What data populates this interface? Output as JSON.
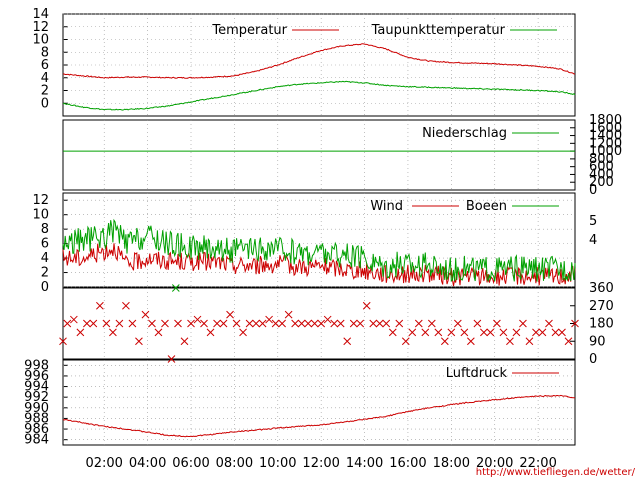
{
  "footer_url": "http://www.tiefliegen.de/wetter/",
  "colors": {
    "red": "#cc0000",
    "green": "#00a000",
    "marker": "#cc0000"
  },
  "x_axis": {
    "ticks": [
      "02:00",
      "04:00",
      "06:00",
      "08:00",
      "10:00",
      "12:00",
      "14:00",
      "16:00",
      "18:00",
      "20:00",
      "22:00"
    ],
    "tick_hours": [
      2,
      4,
      6,
      8,
      10,
      12,
      14,
      16,
      18,
      20,
      22
    ],
    "range_hours": [
      0.1,
      23.7
    ]
  },
  "chart_data": [
    {
      "type": "line",
      "ylim": [
        -2,
        14
      ],
      "yticks": [
        0,
        2,
        4,
        6,
        8,
        10,
        12,
        14
      ],
      "grid": true,
      "legend_position": "top-right",
      "series": [
        {
          "name": "Temperatur",
          "color": "#cc0000",
          "x": [
            0.1,
            1,
            2,
            3,
            4,
            5,
            6,
            7,
            8,
            9,
            10,
            11,
            12,
            13,
            14,
            15,
            16,
            17,
            18,
            19,
            20,
            21,
            22,
            23,
            23.7
          ],
          "values": [
            4.6,
            4.3,
            4.0,
            4.1,
            4.1,
            4.0,
            4.0,
            4.1,
            4.3,
            5.0,
            6.0,
            7.2,
            8.3,
            9.0,
            9.3,
            8.5,
            7.2,
            6.6,
            6.4,
            6.3,
            6.2,
            6.0,
            5.8,
            5.4,
            4.6
          ]
        },
        {
          "name": "Taupunkttemperatur",
          "color": "#00a000",
          "x": [
            0.1,
            1,
            2,
            3,
            4,
            5,
            6,
            7,
            8,
            9,
            10,
            11,
            12,
            13,
            14,
            15,
            16,
            17,
            18,
            19,
            20,
            21,
            22,
            23,
            23.7
          ],
          "values": [
            0.0,
            -0.6,
            -1.0,
            -1.0,
            -0.8,
            -0.4,
            0.2,
            0.8,
            1.4,
            2.0,
            2.6,
            3.0,
            3.2,
            3.4,
            3.2,
            2.8,
            2.6,
            2.5,
            2.4,
            2.3,
            2.2,
            2.1,
            2.0,
            1.8,
            1.4
          ]
        }
      ]
    },
    {
      "type": "line",
      "ylim": [
        0,
        1800
      ],
      "yticks": [
        0,
        200,
        400,
        600,
        800,
        1000,
        1200,
        1400,
        1600,
        1800
      ],
      "grid": false,
      "legend_position": "top-right",
      "series": [
        {
          "name": "Niederschlag",
          "color": "#00a000",
          "x": [
            0.1,
            23.7
          ],
          "values": [
            1000,
            1000
          ]
        }
      ]
    },
    {
      "type": "line",
      "ylim": [
        0,
        13
      ],
      "yticks": [
        0,
        2,
        4,
        6,
        8,
        10,
        12
      ],
      "secondary_ticks": [
        "4",
        "5"
      ],
      "grid": true,
      "legend_position": "top-right",
      "series": [
        {
          "name": "Wind",
          "color": "#cc0000",
          "x": [
            0.1,
            1,
            2,
            2.5,
            3,
            4,
            5,
            6,
            7,
            8,
            9,
            10,
            11,
            12,
            13,
            14,
            15,
            16,
            17,
            18,
            19,
            20,
            21,
            22,
            23,
            23.7
          ],
          "values": [
            4.0,
            4.0,
            5.0,
            5.5,
            3.0,
            4.0,
            3.5,
            3.5,
            3.5,
            3.0,
            3.0,
            3.2,
            2.8,
            2.8,
            2.5,
            2.2,
            1.8,
            1.8,
            1.8,
            1.4,
            1.5,
            1.4,
            1.6,
            1.5,
            1.5,
            1.8
          ]
        },
        {
          "name": "Boeen",
          "color": "#00a000",
          "x": [
            0.1,
            1,
            2,
            2.5,
            3,
            4,
            5,
            6,
            7,
            8,
            9,
            10,
            11,
            12,
            13,
            14,
            15,
            16,
            17,
            18,
            19,
            20,
            21,
            22,
            23,
            23.7
          ],
          "values": [
            6.0,
            6.5,
            7.0,
            8.0,
            6.0,
            7.0,
            6.0,
            5.5,
            5.5,
            5.0,
            5.0,
            5.2,
            4.8,
            4.8,
            4.3,
            3.8,
            3.0,
            3.2,
            3.0,
            2.6,
            2.6,
            2.4,
            2.5,
            2.4,
            2.5,
            2.6
          ]
        }
      ]
    },
    {
      "type": "scatter",
      "ylim": [
        0,
        360
      ],
      "yticks": [
        0,
        90,
        180,
        270,
        360
      ],
      "grid": false,
      "series": [
        {
          "color": "#cc0000",
          "x": [
            0.1,
            0.3,
            0.6,
            0.9,
            1.2,
            1.5,
            1.8,
            2.1,
            2.4,
            2.7,
            3.0,
            3.3,
            3.6,
            3.9,
            4.2,
            4.5,
            4.8,
            5.1,
            5.4,
            5.7,
            6.0,
            6.3,
            6.6,
            6.9,
            7.2,
            7.5,
            7.8,
            8.1,
            8.4,
            8.7,
            9.0,
            9.3,
            9.6,
            9.9,
            10.2,
            10.5,
            10.8,
            11.1,
            11.4,
            11.7,
            12.0,
            12.3,
            12.6,
            12.9,
            13.2,
            13.5,
            13.8,
            14.1,
            14.4,
            14.7,
            15.0,
            15.3,
            15.6,
            15.9,
            16.2,
            16.5,
            16.8,
            17.1,
            17.4,
            17.7,
            18.0,
            18.3,
            18.6,
            18.9,
            19.2,
            19.5,
            19.8,
            20.1,
            20.4,
            20.7,
            21.0,
            21.3,
            21.6,
            21.9,
            22.2,
            22.5,
            22.8,
            23.1,
            23.4,
            23.7
          ],
          "values": [
            90,
            180,
            200,
            135,
            180,
            180,
            270,
            180,
            135,
            180,
            270,
            180,
            90,
            225,
            180,
            135,
            180,
            0,
            180,
            90,
            180,
            200,
            180,
            135,
            180,
            180,
            225,
            180,
            135,
            180,
            180,
            180,
            200,
            180,
            180,
            225,
            180,
            180,
            180,
            180,
            180,
            200,
            180,
            180,
            90,
            180,
            180,
            270,
            180,
            180,
            180,
            135,
            180,
            90,
            135,
            180,
            135,
            180,
            135,
            90,
            135,
            180,
            135,
            90,
            180,
            135,
            135,
            180,
            135,
            90,
            135,
            180,
            90,
            135,
            135,
            180,
            135,
            135,
            90,
            180
          ]
        },
        {
          "color": "#00a000",
          "x": [
            5.3
          ],
          "values": [
            360
          ]
        }
      ]
    },
    {
      "type": "line",
      "ylim": [
        983,
        999
      ],
      "yticks": [
        984,
        986,
        988,
        990,
        992,
        994,
        996,
        998
      ],
      "grid": true,
      "legend_position": "top-right",
      "series": [
        {
          "name": "Luftdruck",
          "color": "#cc0000",
          "x": [
            0.1,
            1,
            2,
            3,
            4,
            5,
            6,
            7,
            8,
            9,
            10,
            11,
            12,
            13,
            14,
            15,
            16,
            17,
            18,
            19,
            20,
            21,
            22,
            23,
            23.7
          ],
          "values": [
            987.8,
            987.2,
            986.5,
            986.0,
            985.4,
            984.8,
            984.6,
            985.0,
            985.5,
            985.8,
            986.2,
            986.5,
            986.8,
            987.3,
            987.8,
            988.4,
            989.3,
            990.0,
            990.6,
            991.1,
            991.5,
            991.9,
            992.2,
            992.3,
            991.9
          ]
        }
      ]
    }
  ]
}
